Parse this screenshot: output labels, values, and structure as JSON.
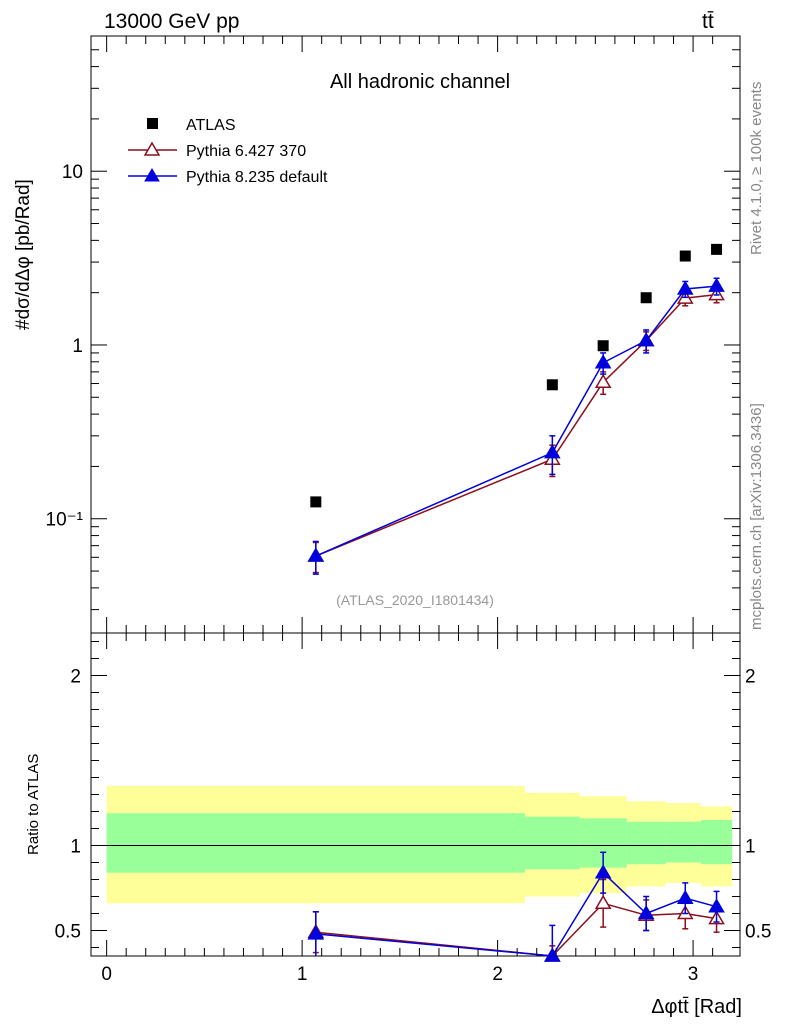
{
  "header": {
    "energy": "13000 GeV pp",
    "process": "tt̄"
  },
  "side": {
    "rivet": "Rivet 4.1.0, ≥ 100k events",
    "mcplots": "mcplots.cern.ch [arXiv:1306.3436]"
  },
  "colors": {
    "atlas": "#000000",
    "py6": "#8b0f1e",
    "py8": "#0000dd",
    "band_inner": "#99ff99",
    "band_outer": "#ffff99"
  },
  "chart_data": {
    "type": "scatter",
    "title": "All hadronic channel",
    "analysis": "(ATLAS_2020_I1801434)",
    "ylabel": "#dσ/dΔφ [pb/Rad]",
    "xlabel": "Δφtt̄ [Rad]",
    "xlim": [
      -0.08,
      3.24
    ],
    "ylim_log": [
      0.022,
      60
    ],
    "y_ticks": [
      {
        "v": 0.1,
        "label": "10⁻¹"
      },
      {
        "v": 1,
        "label": "1"
      },
      {
        "v": 10,
        "label": "10"
      }
    ],
    "x_ticks": [
      {
        "v": 0,
        "label": "0"
      },
      {
        "v": 1,
        "label": "1"
      },
      {
        "v": 2,
        "label": "2"
      },
      {
        "v": 3,
        "label": "3"
      }
    ],
    "legend": [
      {
        "name": "ATLAS",
        "style": "square"
      },
      {
        "name": "Pythia 6.427 370",
        "style": "open-triangle"
      },
      {
        "name": "Pythia 8.235 default",
        "style": "filled-triangle"
      }
    ],
    "x": [
      1.07,
      2.28,
      2.54,
      2.76,
      2.96,
      3.12
    ],
    "bin_edges": [
      0.0,
      2.14,
      2.42,
      2.66,
      2.86,
      3.04,
      3.2
    ],
    "series": [
      {
        "name": "ATLAS",
        "values": [
          0.125,
          0.59,
          0.99,
          1.87,
          3.25,
          3.55
        ]
      },
      {
        "name": "Pythia 6.427 370",
        "values": [
          0.061,
          0.22,
          0.61,
          1.06,
          1.86,
          1.95
        ],
        "err": [
          0.012,
          0.045,
          0.09,
          0.13,
          0.18,
          0.2
        ]
      },
      {
        "name": "Pythia 8.235 default",
        "values": [
          0.061,
          0.24,
          0.79,
          1.06,
          2.1,
          2.18
        ],
        "err": [
          0.013,
          0.06,
          0.11,
          0.16,
          0.22,
          0.24
        ]
      }
    ],
    "ratio": {
      "ylabel": "Ratio to ATLAS",
      "ylim": [
        0.35,
        2.25
      ],
      "y_ticks": [
        {
          "v": 0.5,
          "label": "0.5"
        },
        {
          "v": 1,
          "label": "1"
        },
        {
          "v": 2,
          "label": "2"
        }
      ],
      "band_outer": [
        [
          0.66,
          1.35
        ],
        [
          0.7,
          1.31
        ],
        [
          0.72,
          1.29
        ],
        [
          0.76,
          1.26
        ],
        [
          0.78,
          1.25
        ],
        [
          0.76,
          1.23
        ]
      ],
      "band_inner": [
        [
          0.84,
          1.19
        ],
        [
          0.86,
          1.17
        ],
        [
          0.87,
          1.16
        ],
        [
          0.89,
          1.14
        ],
        [
          0.9,
          1.14
        ],
        [
          0.89,
          1.15
        ]
      ],
      "py6": [
        0.49,
        0.33,
        0.66,
        0.59,
        0.6,
        0.57
      ],
      "py6_err": [
        0.12,
        0.08,
        0.14,
        0.09,
        0.09,
        0.08
      ],
      "py8": [
        0.48,
        0.35,
        0.84,
        0.6,
        0.69,
        0.64
      ],
      "py8_err": [
        0.13,
        0.18,
        0.12,
        0.1,
        0.09,
        0.09
      ]
    }
  }
}
